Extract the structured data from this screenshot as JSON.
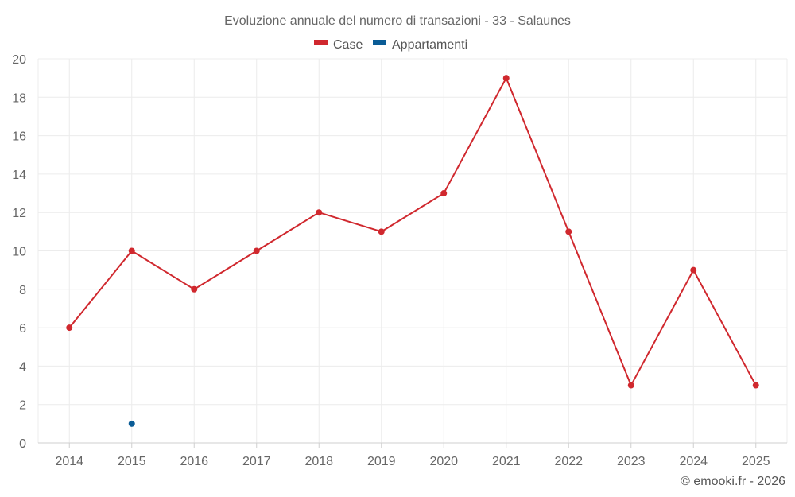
{
  "chart_data": {
    "type": "line",
    "title": "Evoluzione annuale del numero di transazioni - 33 - Salaunes",
    "categories": [
      "2014",
      "2015",
      "2016",
      "2017",
      "2018",
      "2019",
      "2020",
      "2021",
      "2022",
      "2023",
      "2024",
      "2025"
    ],
    "series": [
      {
        "name": "Case",
        "color": "#d0282e",
        "values": [
          6,
          10,
          8,
          10,
          12,
          11,
          13,
          19,
          11,
          3,
          9,
          3
        ]
      },
      {
        "name": "Appartamenti",
        "color": "#0a5c96",
        "values": [
          null,
          1,
          null,
          null,
          null,
          null,
          null,
          null,
          null,
          null,
          null,
          null
        ]
      }
    ],
    "yticks": [
      "0",
      "2",
      "4",
      "6",
      "8",
      "10",
      "12",
      "14",
      "16",
      "18",
      "20"
    ],
    "ylim": [
      0,
      20
    ],
    "xlabel": "",
    "ylabel": "",
    "legend": "top-center",
    "grid": true
  },
  "credit": "© emooki.fr - 2026"
}
